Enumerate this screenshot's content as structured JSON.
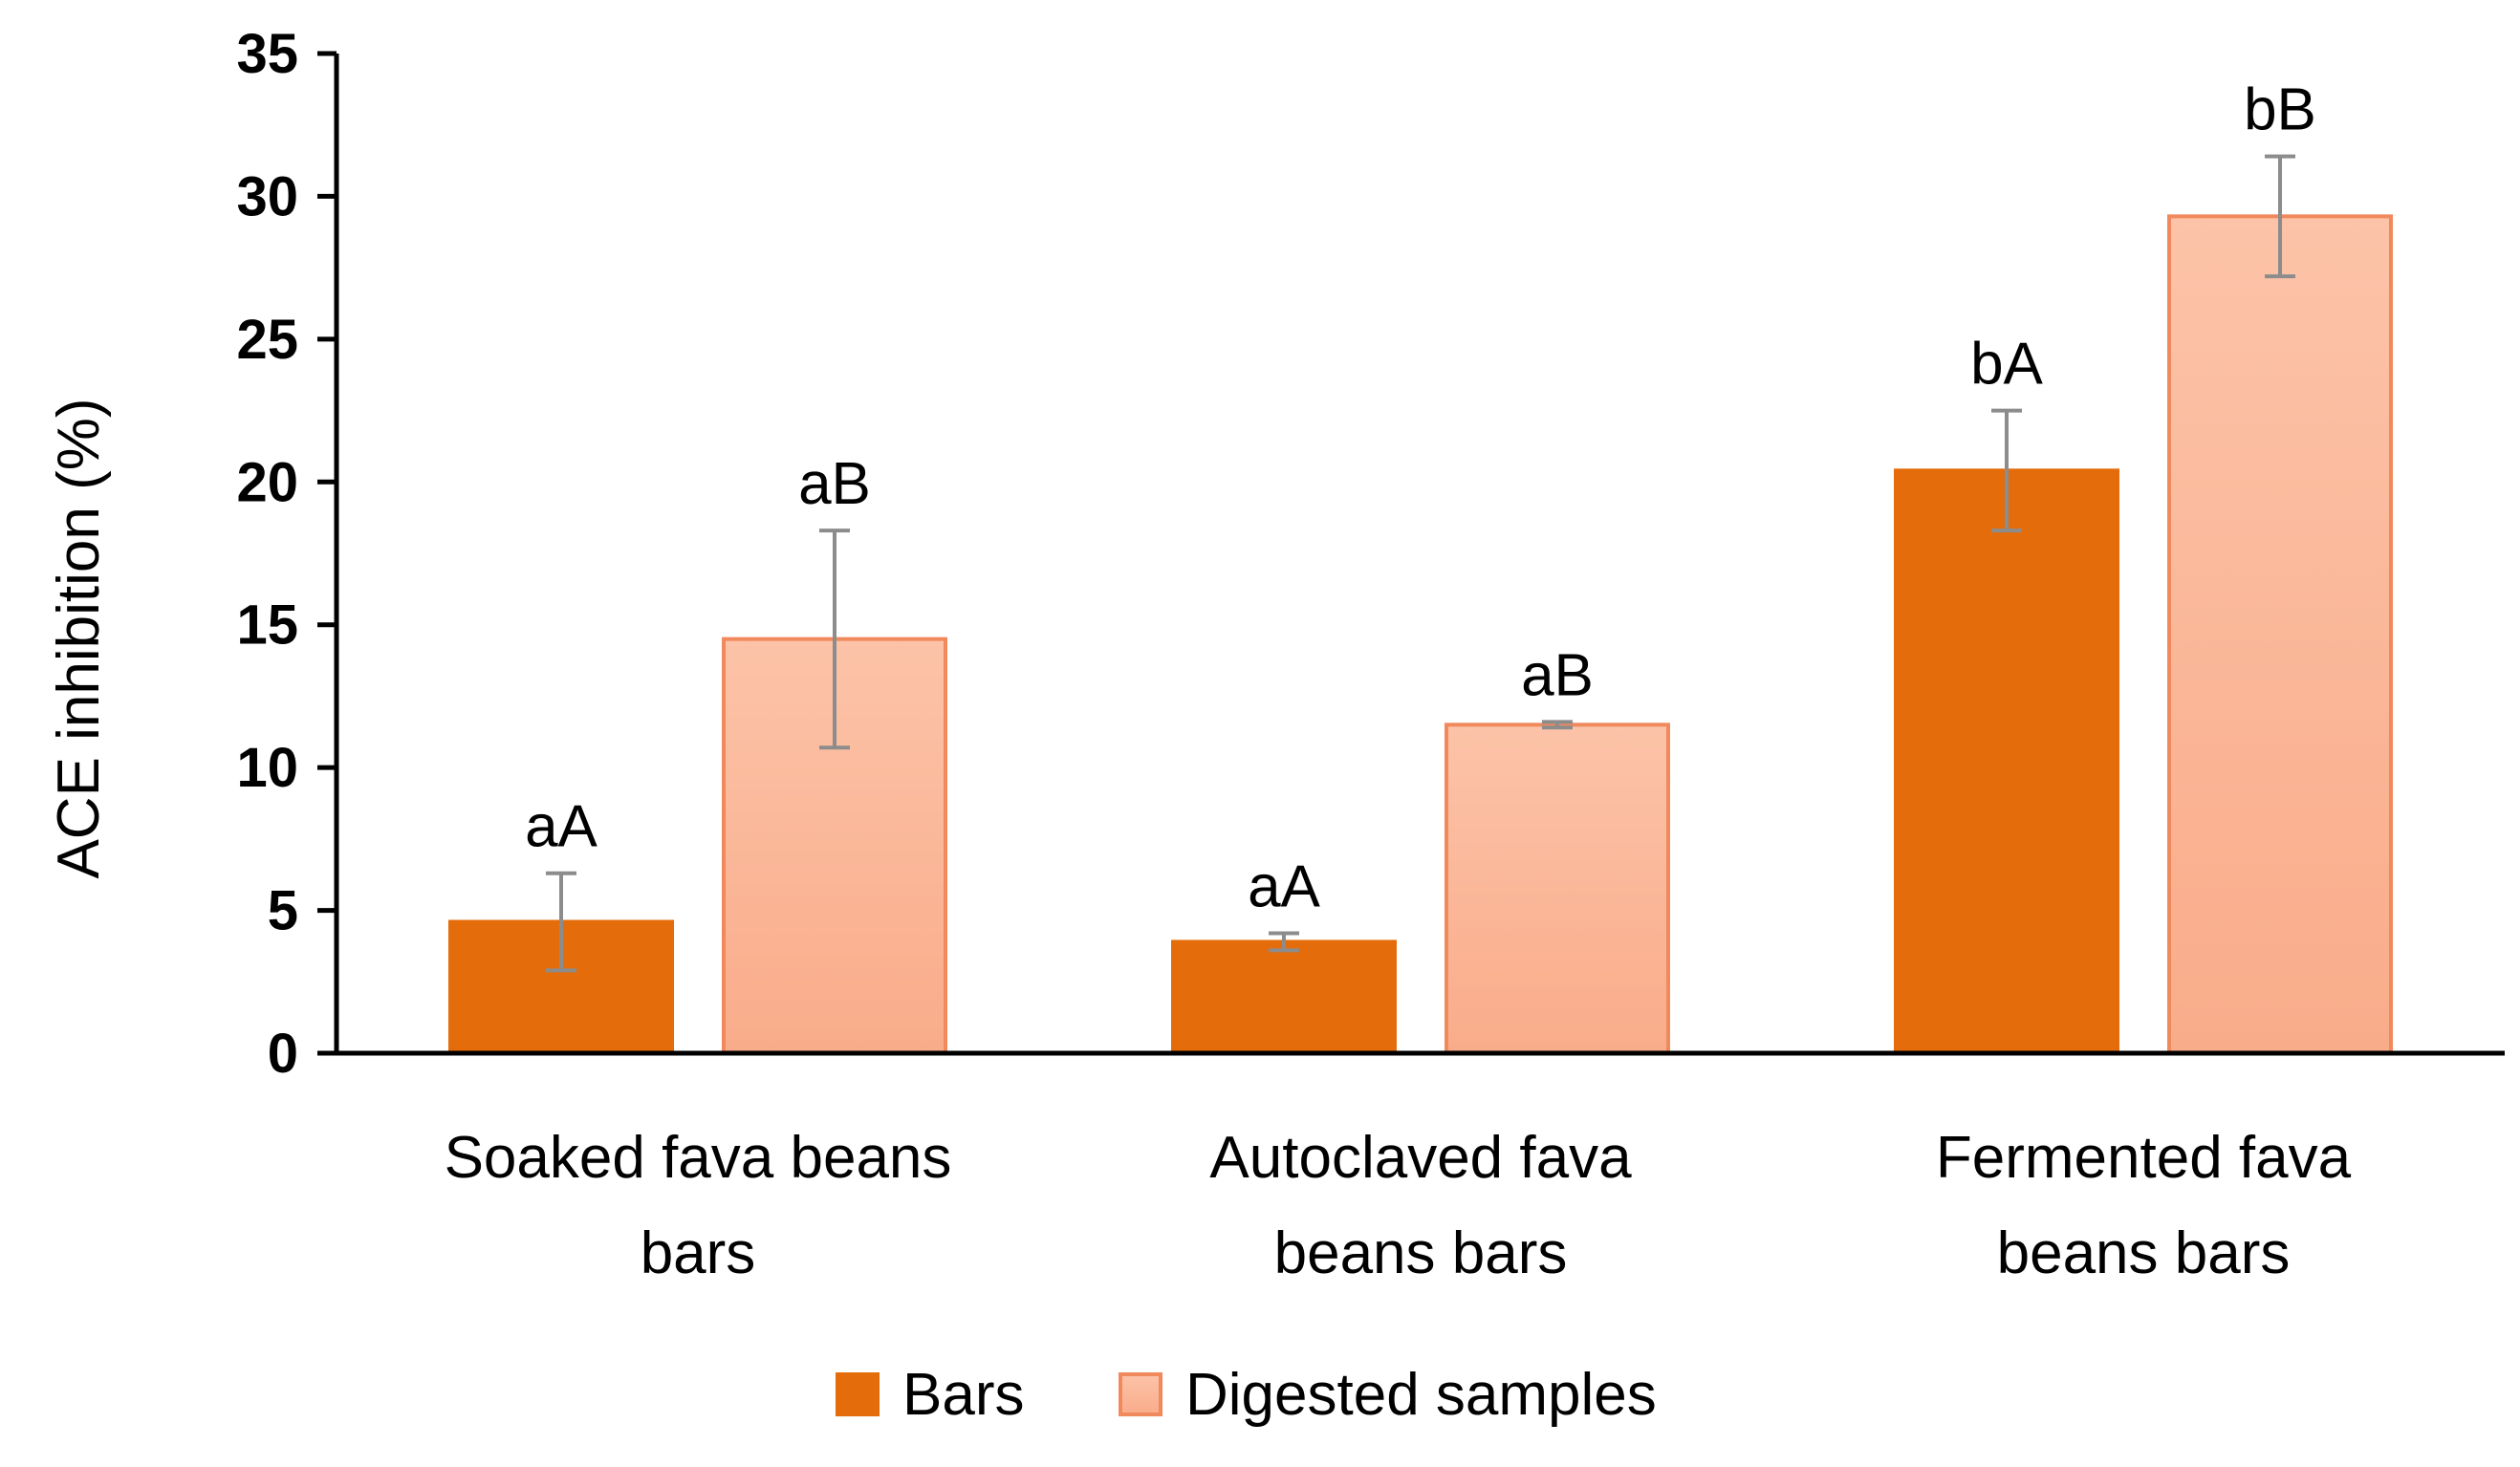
{
  "chart_data": {
    "type": "bar",
    "title": "",
    "xlabel": "",
    "ylabel": "ACE inhibition (%)",
    "ylim": [
      0,
      35
    ],
    "yticks": [
      0,
      5,
      10,
      15,
      20,
      25,
      30,
      35
    ],
    "grid": false,
    "legend_position": "bottom",
    "categories": [
      [
        "Soaked fava beans",
        "bars"
      ],
      [
        "Autoclaved fava",
        "beans bars"
      ],
      [
        "Fermented fava",
        "beans bars"
      ]
    ],
    "series": [
      {
        "name": "Bars",
        "color": "#e46c0a",
        "stroke": "#e46c0a",
        "values": [
          4.6,
          3.9,
          20.4
        ],
        "errors": [
          1.7,
          0.3,
          2.1
        ],
        "labels": [
          "aA",
          "aA",
          "bA"
        ]
      },
      {
        "name": "Digested samples",
        "color": "#fbb79c",
        "stroke": "#f0895c",
        "values": [
          14.5,
          11.5,
          29.3
        ],
        "errors": [
          3.8,
          0.1,
          2.1
        ],
        "labels": [
          "aB",
          "aB",
          "bB"
        ]
      }
    ]
  }
}
